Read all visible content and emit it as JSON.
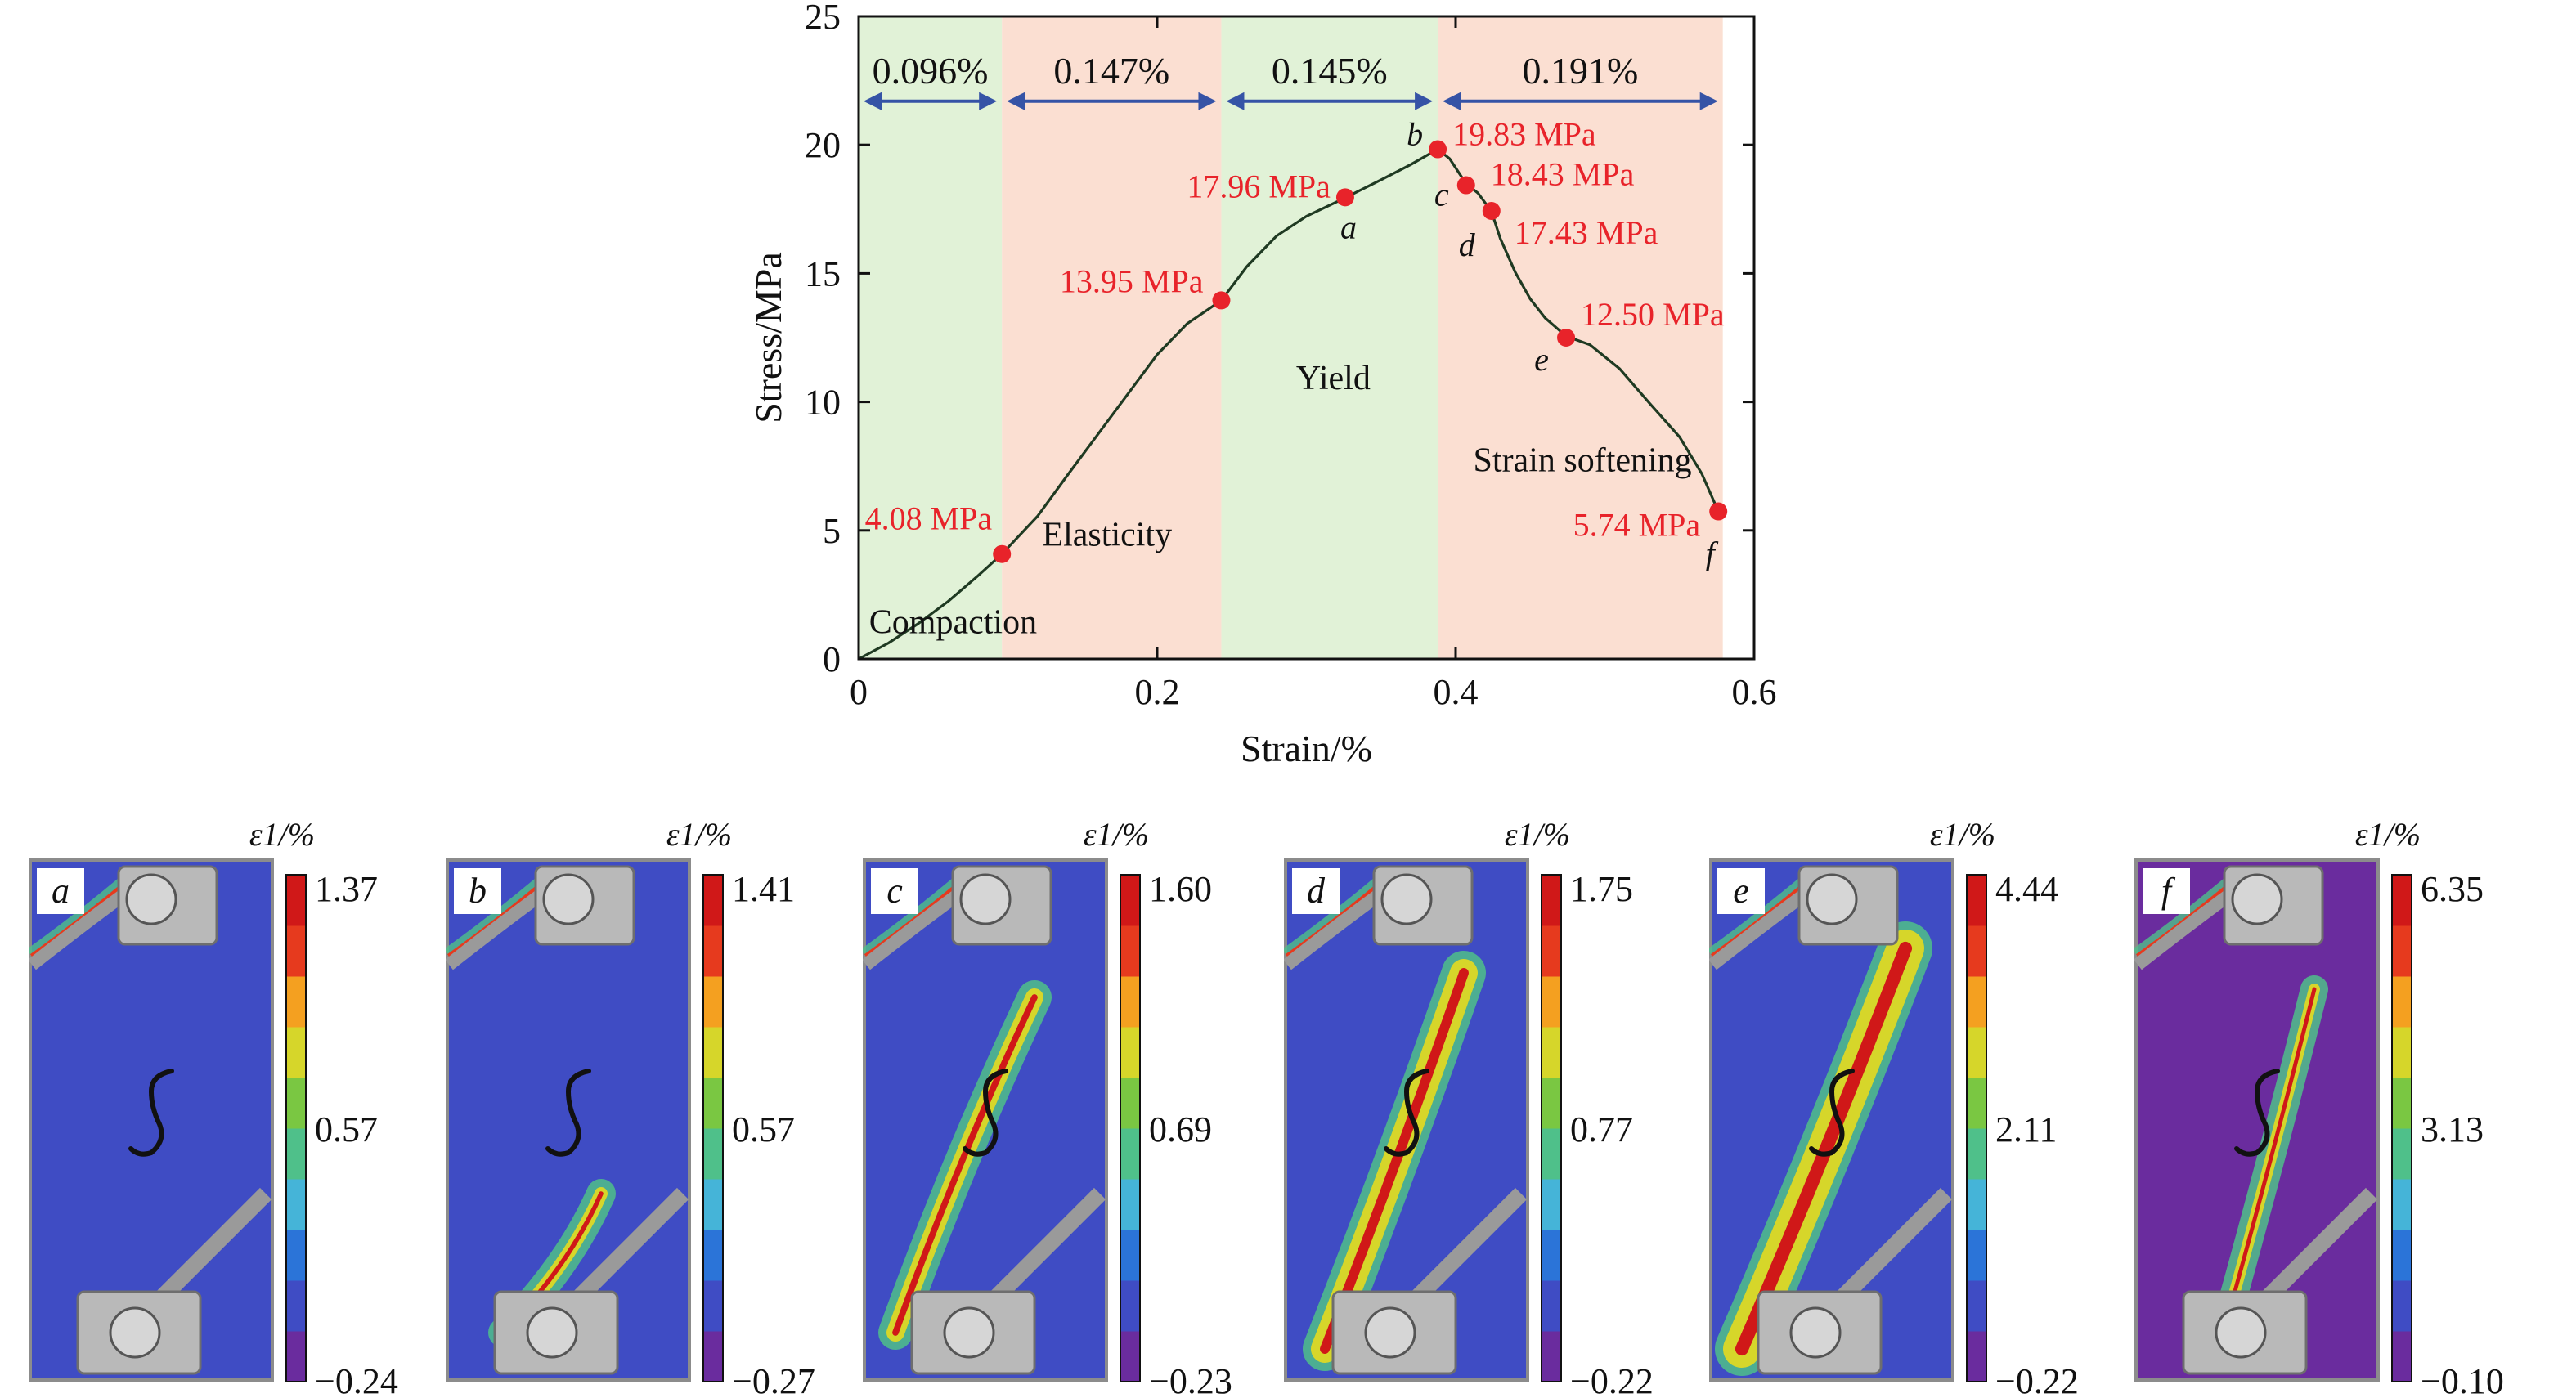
{
  "chart_data": [
    {
      "type": "line",
      "xlabel": "Strain/%",
      "ylabel": "Stress/MPa",
      "xlim": [
        0,
        0.6
      ],
      "ylim": [
        0,
        25
      ],
      "xticks": [
        "0",
        "0.2",
        "0.4",
        "0.6"
      ],
      "yticks": [
        "0",
        "5",
        "10",
        "15",
        "20",
        "25"
      ],
      "grid": false,
      "series": [
        {
          "x": [
            0,
            0.02,
            0.04,
            0.06,
            0.08,
            0.096,
            0.12,
            0.14,
            0.16,
            0.18,
            0.2,
            0.22,
            0.243,
            0.26,
            0.28,
            0.3,
            0.326,
            0.35,
            0.37,
            0.388,
            0.396,
            0.407,
            0.415,
            0.424,
            0.43,
            0.44,
            0.45,
            0.46,
            0.474,
            0.49,
            0.51,
            0.53,
            0.55,
            0.565,
            0.576
          ],
          "y": [
            0,
            0.6,
            1.4,
            2.3,
            3.2,
            4.08,
            5.6,
            7.1,
            8.7,
            10.3,
            11.9,
            13.0,
            13.95,
            15.3,
            16.4,
            17.2,
            17.96,
            18.7,
            19.2,
            19.83,
            19.5,
            18.43,
            18.1,
            17.43,
            16.4,
            15.0,
            14.0,
            13.3,
            12.5,
            12.2,
            11.3,
            10.0,
            8.6,
            7.2,
            5.74
          ]
        }
      ],
      "stages": [
        {
          "label": "Compaction",
          "from": 0,
          "to": 0.096,
          "color": "#e1f2d7",
          "span_label": "0.096%"
        },
        {
          "label": "Elasticity",
          "from": 0.096,
          "to": 0.243,
          "color": "#fbdfd2",
          "span_label": "0.147%"
        },
        {
          "label": "Yield",
          "from": 0.243,
          "to": 0.388,
          "color": "#e1f2d7",
          "span_label": "0.145%"
        },
        {
          "label": "Strain softening",
          "from": 0.388,
          "to": 0.579,
          "color": "#fbdfd2",
          "span_label": "0.191%"
        }
      ],
      "points": [
        {
          "x": 0.096,
          "y": 4.08,
          "value_label": "4.08 MPa",
          "letter": ""
        },
        {
          "x": 0.243,
          "y": 13.95,
          "value_label": "13.95 MPa",
          "letter": ""
        },
        {
          "x": 0.326,
          "y": 17.96,
          "value_label": "17.96 MPa",
          "letter": "a"
        },
        {
          "x": 0.388,
          "y": 19.83,
          "value_label": "19.83 MPa",
          "letter": "b"
        },
        {
          "x": 0.407,
          "y": 18.43,
          "value_label": "18.43 MPa",
          "letter": "c"
        },
        {
          "x": 0.424,
          "y": 17.43,
          "value_label": "17.43 MPa",
          "letter": "d"
        },
        {
          "x": 0.474,
          "y": 12.5,
          "value_label": "12.50 MPa",
          "letter": "e"
        },
        {
          "x": 0.576,
          "y": 5.74,
          "value_label": "5.74 MPa",
          "letter": "f"
        }
      ],
      "colors": {
        "curve": "#1f3a22",
        "points": "#e8232a",
        "labels": "#e8232a",
        "arrows": "#3553a6"
      }
    },
    {
      "type": "heatmap",
      "colorbar_label": "ε1/%",
      "panels": [
        {
          "letter": "a",
          "max": "1.37",
          "mid": "0.57",
          "min": "−0.24"
        },
        {
          "letter": "b",
          "max": "1.41",
          "mid": "0.57",
          "min": "−0.27"
        },
        {
          "letter": "c",
          "max": "1.60",
          "mid": "0.69",
          "min": "−0.23"
        },
        {
          "letter": "d",
          "max": "1.75",
          "mid": "0.77",
          "min": "−0.22"
        },
        {
          "letter": "e",
          "max": "4.44",
          "mid": "2.11",
          "min": "−0.22"
        },
        {
          "letter": "f",
          "max": "6.35",
          "mid": "3.13",
          "min": "−0.10"
        }
      ],
      "colors": [
        "#6a2c9e",
        "#3f4cc4",
        "#2b74d8",
        "#45b4d8",
        "#4fc08a",
        "#7ac742",
        "#d6d62a",
        "#f4a020",
        "#e63a1e",
        "#d01818"
      ]
    }
  ]
}
